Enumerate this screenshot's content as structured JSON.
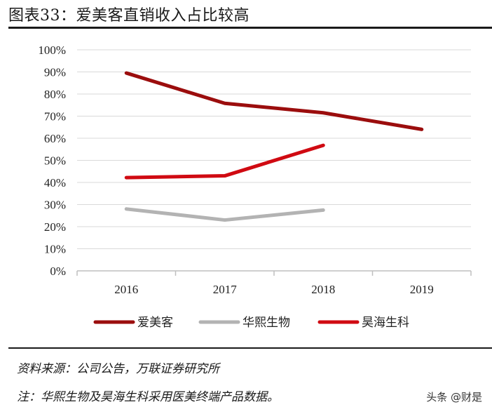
{
  "header": {
    "title": "图表33：爱美客直销收入占比较高"
  },
  "footer": {
    "source": "资料来源：公司公告，万联证券研究所",
    "note": "注：华熙生物及昊海生科采用医美终端产品数据。",
    "watermark": "头条 @财是"
  },
  "chart_data": {
    "type": "line",
    "title": "图表33：爱美客直销收入占比较高",
    "xlabel": "",
    "ylabel": "",
    "categories": [
      "2016",
      "2017",
      "2018",
      "2019"
    ],
    "ylim": [
      0,
      100
    ],
    "yticks": [
      "0%",
      "10%",
      "20%",
      "30%",
      "40%",
      "50%",
      "60%",
      "70%",
      "80%",
      "90%",
      "100%"
    ],
    "grid": true,
    "legend_position": "bottom",
    "series": [
      {
        "name": "爱美客",
        "color": "#9b0d0d",
        "values": [
          89.5,
          75.8,
          71.5,
          64.0
        ]
      },
      {
        "name": "华熙生物",
        "color": "#b3b3b3",
        "values": [
          28.0,
          23.0,
          27.5,
          null
        ]
      },
      {
        "name": "昊海生科",
        "color": "#d00a12",
        "values": [
          42.2,
          43.0,
          56.8,
          null
        ]
      }
    ]
  }
}
